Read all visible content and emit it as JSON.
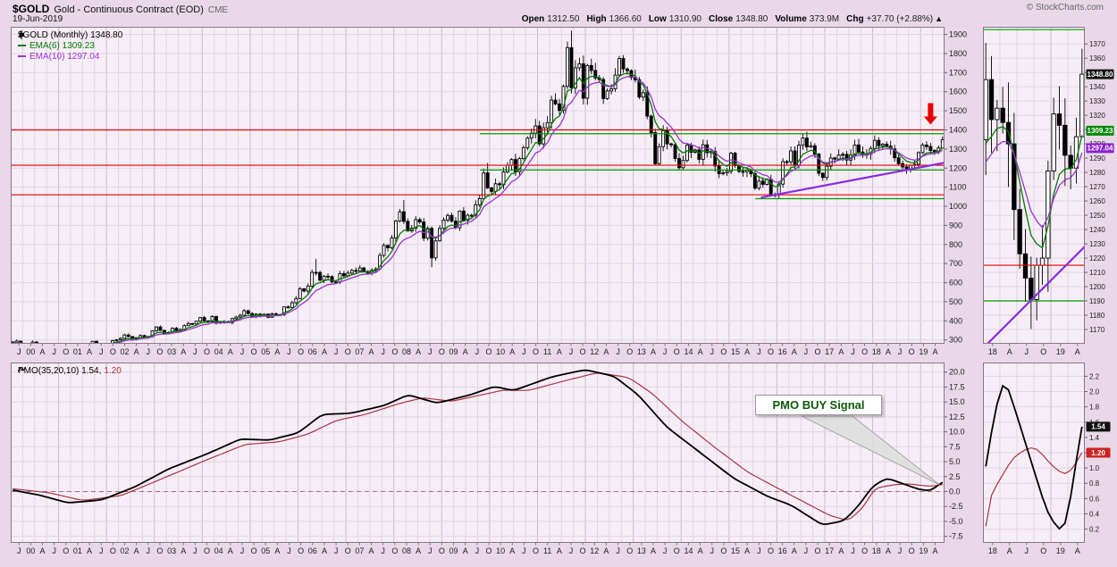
{
  "header": {
    "symbol": "$GOLD",
    "name": "Gold - Continuous Contract (EOD)",
    "exchange": "CME",
    "copyright": "© StockCharts.com",
    "date": "19-Jun-2019",
    "quote_items": [
      {
        "label": "Open",
        "value": "1312.50"
      },
      {
        "label": "High",
        "value": "1366.60"
      },
      {
        "label": "Low",
        "value": "1310.90"
      },
      {
        "label": "Close",
        "value": "1348.80"
      },
      {
        "label": "Volume",
        "value": "373.9M"
      },
      {
        "label": "Chg",
        "value": "+37.70 (+2.88%)"
      }
    ],
    "change_arrow": "▲"
  },
  "legend_main": {
    "series": "$GOLD (Monthly) 1348.80",
    "ema6": "EMA(6) 1309.23",
    "ema10": "EMA(10) 1297.04"
  },
  "legend_pmo": {
    "title": "PMO(35,20,10) 1.54,",
    "signal": "1.20"
  },
  "annotations": {
    "buy_signal_text": "PMO BUY Signal"
  },
  "colors": {
    "page_bg": "#E8D8E8",
    "plot_bg": "#F6EEF6",
    "grid_minor": "#E3D3E3",
    "grid_year": "#CDB8CD",
    "border": "#8A758A",
    "candle": "#000000",
    "candle_up_fill": "#FFFFFF",
    "ema6": "#007A00",
    "ema10": "#9933CC",
    "red_line": "#E60000",
    "green_line": "#009900",
    "trendline": "#8A2BE2",
    "pmo_line": "#000000",
    "pmo_signal": "#AA3344",
    "zero_line": "#AA6688",
    "arrow": "#E80000",
    "axis_text": "#222222",
    "label_black_bg": "#111111",
    "label_green_bg": "#008800",
    "label_purple_bg": "#8822CC",
    "label_red_bg": "#CC2222"
  },
  "chart_data": {
    "type": "candlestick",
    "title": "$GOLD (Monthly)",
    "x_axis": {
      "start_year": 2000,
      "start_month": 1,
      "months": 234,
      "leading_label": "J",
      "quarter_labels": [
        "A",
        "J",
        "O"
      ],
      "year_labels": [
        "00",
        "01",
        "02",
        "03",
        "04",
        "05",
        "06",
        "07",
        "08",
        "09",
        "10",
        "11",
        "12",
        "13",
        "14",
        "15",
        "16",
        "17",
        "18",
        "19"
      ],
      "trailing_labels": [
        "A"
      ]
    },
    "y_axis_main": {
      "min": 280,
      "max": 1940,
      "grid_step": 100,
      "tick_min": 300,
      "tick_max": 1900
    },
    "price": {
      "closes": [
        283,
        294,
        276,
        275,
        272,
        289,
        276,
        277,
        273,
        264,
        269,
        272,
        264,
        266,
        257,
        264,
        267,
        270,
        265,
        274,
        293,
        278,
        274,
        277,
        282,
        296,
        301,
        308,
        326,
        318,
        304,
        312,
        323,
        317,
        318,
        348,
        368,
        350,
        334,
        336,
        361,
        346,
        355,
        375,
        386,
        384,
        398,
        417,
        400,
        395,
        423,
        388,
        393,
        395,
        391,
        412,
        420,
        429,
        453,
        438,
        423,
        435,
        428,
        435,
        419,
        437,
        429,
        433,
        473,
        470,
        495,
        517,
        568,
        556,
        582,
        654,
        653,
        613,
        634,
        632,
        604,
        604,
        647,
        636,
        650,
        664,
        661,
        677,
        659,
        650,
        665,
        672,
        743,
        795,
        783,
        834,
        923,
        971,
        921,
        871,
        885,
        930,
        918,
        833,
        884,
        730,
        819,
        884,
        928,
        952,
        922,
        888,
        975,
        927,
        953,
        953,
        1008,
        1040,
        1175,
        1096,
        1078,
        1118,
        1113,
        1180,
        1215,
        1245,
        1181,
        1250,
        1307,
        1357,
        1383,
        1421,
        1327,
        1411,
        1438,
        1556,
        1536,
        1502,
        1628,
        1831,
        1620,
        1725,
        1746,
        1566,
        1737,
        1711,
        1672,
        1664,
        1564,
        1604,
        1615,
        1687,
        1774,
        1719,
        1710,
        1675,
        1663,
        1572,
        1595,
        1472,
        1386,
        1223,
        1312,
        1396,
        1327,
        1323,
        1250,
        1202,
        1240,
        1321,
        1283,
        1295,
        1246,
        1322,
        1281,
        1287,
        1211,
        1171,
        1175,
        1183,
        1278,
        1213,
        1183,
        1182,
        1189,
        1171,
        1095,
        1132,
        1115,
        1141,
        1061,
        1060,
        1116,
        1234,
        1233,
        1290,
        1214,
        1320,
        1357,
        1311,
        1317,
        1273,
        1173,
        1151,
        1210,
        1253,
        1247,
        1268,
        1272,
        1242,
        1268,
        1321,
        1284,
        1271,
        1273,
        1303,
        1345,
        1317,
        1325,
        1315,
        1300,
        1254,
        1223,
        1206,
        1191,
        1215,
        1220,
        1281,
        1321,
        1313,
        1292,
        1283,
        1305,
        1348.8
      ],
      "special_highs": {
        "76": 725,
        "98": 1033,
        "119": 1227,
        "140": 1920,
        "198": 1377,
        "233": 1366.6
      },
      "special_lows": {
        "105": 681,
        "191": 1046,
        "233": 1310.9
      }
    },
    "overlays": {
      "ema_periods": [
        6,
        10
      ]
    },
    "hlines_red": [
      1400,
      1215,
      1060
    ],
    "hlines_green": [
      {
        "value": 1380,
        "from_month": 118
      },
      {
        "value": 1190,
        "from_month": 118
      },
      {
        "value": 1040,
        "from_month": 187
      }
    ],
    "trendline": {
      "from_month": 188,
      "from_value": 1046,
      "to_month": 237,
      "to_value": 1240
    },
    "arrow": {
      "month": 230,
      "tip_value": 1428,
      "tail_value": 1540
    },
    "zoom_window": {
      "from_month": 216,
      "y_min": 1160,
      "y_max": 1382,
      "grid_step": 10,
      "tick_min": 1170,
      "tick_max": 1370,
      "x_labels": [
        "18",
        "A",
        "J",
        "O",
        "19",
        "A"
      ]
    },
    "price_labels": [
      {
        "text": "1348.80",
        "value": 1348.8,
        "bg": "#111111"
      },
      {
        "text": "1309.23",
        "value": 1309.23,
        "bg": "#008800"
      },
      {
        "text": "1297.04",
        "value": 1297.04,
        "bg": "#8822CC"
      }
    ],
    "pmo": {
      "y_min": -8.6,
      "y_max": 21.6,
      "grid_step": 2.5,
      "tick_min": -7.5,
      "tick_max": 20,
      "zero_value": 0,
      "pmo_anchors": [
        [
          2000.0,
          0.3
        ],
        [
          2000.6,
          -0.6
        ],
        [
          2001.2,
          -1.9
        ],
        [
          2001.9,
          -1.4
        ],
        [
          2002.6,
          0.8
        ],
        [
          2003.3,
          3.8
        ],
        [
          2004.1,
          6.3
        ],
        [
          2004.8,
          8.8
        ],
        [
          2005.4,
          8.6
        ],
        [
          2006.0,
          9.8
        ],
        [
          2006.5,
          12.9
        ],
        [
          2007.1,
          13.1
        ],
        [
          2007.8,
          14.4
        ],
        [
          2008.3,
          16.2
        ],
        [
          2008.9,
          14.8
        ],
        [
          2009.6,
          16.2
        ],
        [
          2010.1,
          17.6
        ],
        [
          2010.5,
          16.9
        ],
        [
          2011.3,
          19.2
        ],
        [
          2012.0,
          20.4
        ],
        [
          2012.6,
          19.3
        ],
        [
          2013.1,
          16.2
        ],
        [
          2013.7,
          10.8
        ],
        [
          2014.4,
          6.5
        ],
        [
          2015.1,
          2.2
        ],
        [
          2015.8,
          -0.8
        ],
        [
          2016.3,
          -2.3
        ],
        [
          2016.95,
          -5.6
        ],
        [
          2017.4,
          -4.9
        ],
        [
          2017.7,
          -2.4
        ],
        [
          2018.0,
          0.9
        ],
        [
          2018.3,
          2.25
        ],
        [
          2018.6,
          1.4
        ],
        [
          2018.95,
          0.4
        ],
        [
          2019.2,
          0.1
        ],
        [
          2019.45,
          1.54
        ]
      ],
      "signal_anchors": [
        [
          2000.0,
          0.5
        ],
        [
          2000.8,
          -0.2
        ],
        [
          2001.5,
          -1.5
        ],
        [
          2002.3,
          -0.7
        ],
        [
          2003.0,
          1.6
        ],
        [
          2004.0,
          5.0
        ],
        [
          2004.9,
          7.9
        ],
        [
          2005.6,
          8.3
        ],
        [
          2006.2,
          9.6
        ],
        [
          2006.8,
          11.9
        ],
        [
          2007.4,
          12.9
        ],
        [
          2008.1,
          14.7
        ],
        [
          2008.6,
          15.7
        ],
        [
          2009.2,
          15.1
        ],
        [
          2009.9,
          16.3
        ],
        [
          2010.3,
          17.0
        ],
        [
          2010.8,
          16.9
        ],
        [
          2011.6,
          18.6
        ],
        [
          2012.25,
          19.9
        ],
        [
          2012.9,
          19.1
        ],
        [
          2013.4,
          16.4
        ],
        [
          2014.0,
          11.9
        ],
        [
          2014.7,
          7.4
        ],
        [
          2015.4,
          3.2
        ],
        [
          2016.1,
          0.2
        ],
        [
          2016.6,
          -1.9
        ],
        [
          2017.1,
          -4.0
        ],
        [
          2017.5,
          -4.9
        ],
        [
          2017.8,
          -2.6
        ],
        [
          2018.05,
          0.55
        ],
        [
          2018.45,
          1.15
        ],
        [
          2018.75,
          1.3
        ],
        [
          2019.05,
          1.0
        ],
        [
          2019.25,
          0.88
        ],
        [
          2019.45,
          1.2
        ]
      ],
      "current_pmo": 1.54,
      "current_signal": 1.2,
      "buy_point": {
        "month": 232.3,
        "value": 1.1
      },
      "zoom": {
        "y_min": 0.02,
        "y_max": 2.38,
        "grid_step": 0.2,
        "tick_min": 0.2,
        "tick_max": 2.2,
        "labels": [
          {
            "text": "1.54",
            "value": 1.54,
            "bg": "#111111"
          },
          {
            "text": "1.20",
            "value": 1.2,
            "bg": "#CC2222"
          }
        ]
      }
    }
  }
}
